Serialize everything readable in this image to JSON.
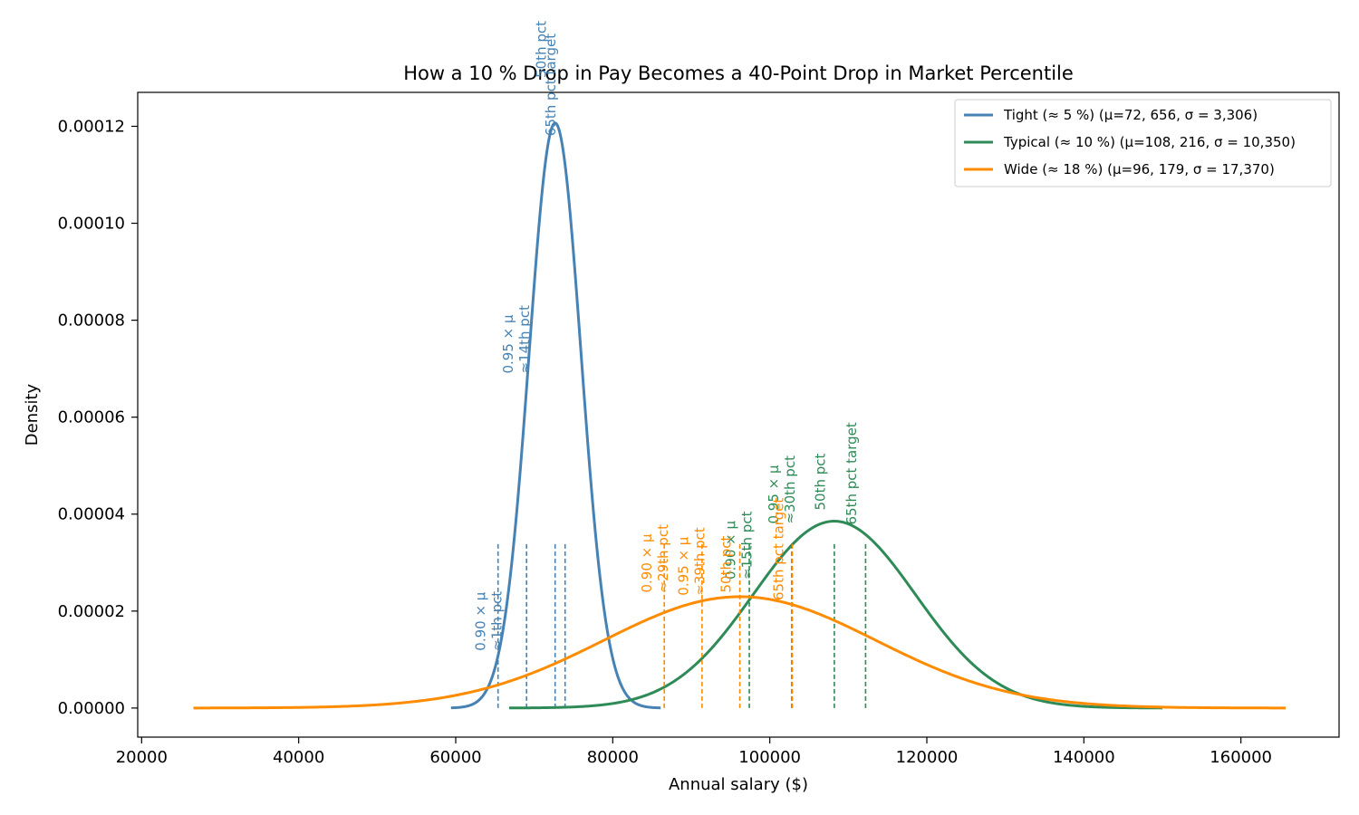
{
  "chart_data": {
    "type": "line",
    "title": "How a 10 % Drop in Pay Becomes a 40-Point Drop in Market Percentile",
    "xlabel": "Annual salary ($)",
    "ylabel": "Density",
    "xlim": [
      19500,
      172500
    ],
    "ylim": [
      -6e-06,
      0.000127
    ],
    "x_ticks": [
      20000,
      40000,
      60000,
      80000,
      100000,
      120000,
      140000,
      160000
    ],
    "x_tick_labels": [
      "20000",
      "40000",
      "60000",
      "80000",
      "100000",
      "120000",
      "140000",
      "160000"
    ],
    "y_ticks": [
      0,
      2e-05,
      4e-05,
      6e-05,
      8e-05,
      0.0001,
      0.00012
    ],
    "y_tick_labels": [
      "0.00000",
      "0.00002",
      "0.00004",
      "0.00006",
      "0.00008",
      "0.00010",
      "0.00012"
    ],
    "grid": false,
    "legend_position": "upper-right",
    "series": [
      {
        "name": "Tight (≈ 5 %)  (μ=72, 656, σ = 3,306)",
        "color": "#4682b4",
        "mu": 72656,
        "sigma": 3306,
        "x_range": [
          59400,
          86100
        ],
        "markers": [
          {
            "x": 65390,
            "label": "0.90 × μ\n≈1th pct",
            "label_x": 63750,
            "label_bottom_y": 1.18e-05
          },
          {
            "x": 69020,
            "label": "0.95 × μ\n≈14th pct",
            "label_x": 67250,
            "label_bottom_y": 6.9e-05
          },
          {
            "x": 72660,
            "label": "50th pct",
            "label_x": 71500,
            "label_bottom_y": 0.00013
          },
          {
            "x": 73930,
            "label": "65th pct target",
            "label_x": 72700,
            "label_bottom_y": 0.000118
          }
        ]
      },
      {
        "name": "Typical (≈ 10 %)  (μ=108, 216, σ = 10,350)",
        "color": "#2e8b57",
        "mu": 108216,
        "sigma": 10350,
        "x_range": [
          66800,
          150000
        ],
        "markers": [
          {
            "x": 97390,
            "label": "0.90 × μ\n≈15th pct",
            "label_x": 95600,
            "label_bottom_y": 2.65e-05
          },
          {
            "x": 102800,
            "label": "0.95 × μ\n≈30th pct",
            "label_x": 101100,
            "label_bottom_y": 3.8e-05
          },
          {
            "x": 108220,
            "label": "50th pct",
            "label_x": 107000,
            "label_bottom_y": 4.08e-05
          },
          {
            "x": 112200,
            "label": "65th pct target",
            "label_x": 111000,
            "label_bottom_y": 3.78e-05
          }
        ]
      },
      {
        "name": "Wide (≈ 18 %)  (μ=96, 179, σ = 17,370)",
        "color": "#ff8c00",
        "mu": 96179,
        "sigma": 17370,
        "x_range": [
          26600,
          165700
        ],
        "markers": [
          {
            "x": 86560,
            "label": "0.90 × μ\n≈29th pct",
            "label_x": 84900,
            "label_bottom_y": 2.38e-05
          },
          {
            "x": 91370,
            "label": "0.95 × μ\n≈39th pct",
            "label_x": 89600,
            "label_bottom_y": 2.32e-05
          },
          {
            "x": 96180,
            "label": "50th pct",
            "label_x": 95000,
            "label_bottom_y": 2.38e-05
          },
          {
            "x": 102870,
            "label": "65th pct target",
            "label_x": 101700,
            "label_bottom_y": 2.22e-05
          }
        ]
      }
    ]
  }
}
